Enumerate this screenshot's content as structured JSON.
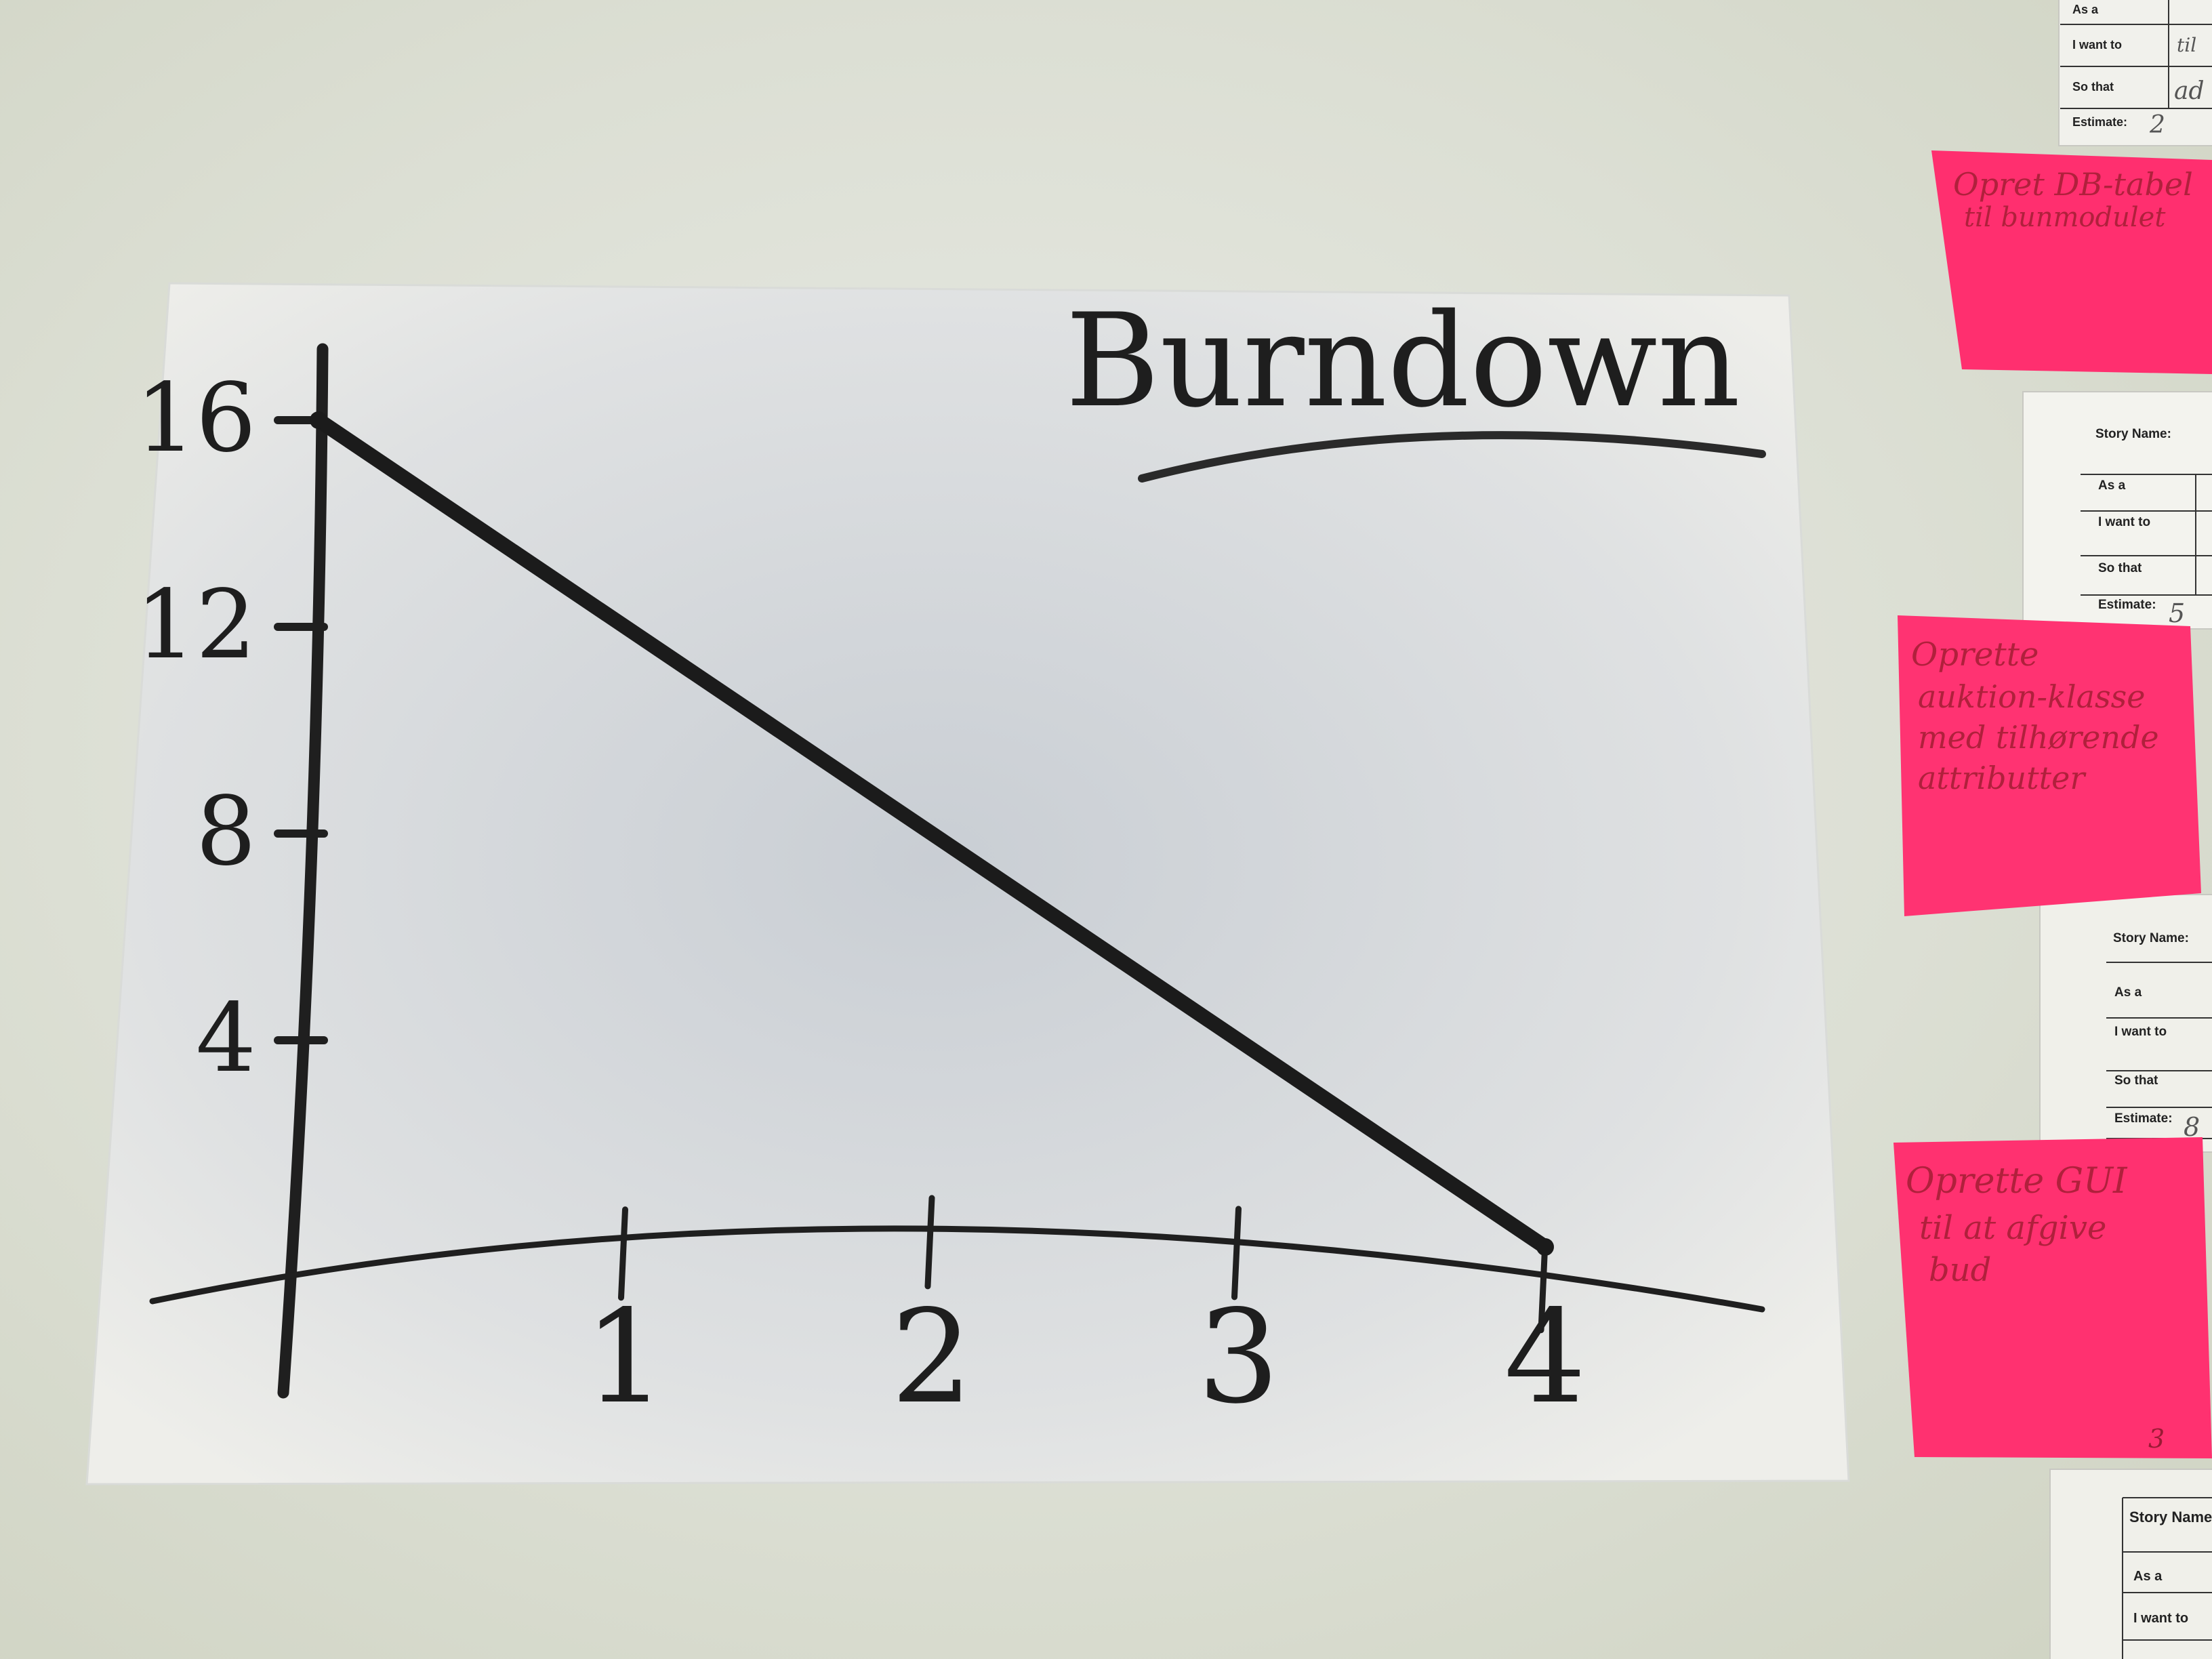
{
  "chart_data": {
    "type": "line",
    "title": "Burndown",
    "x": [
      0,
      4
    ],
    "y": [
      16,
      0
    ],
    "x_ticks": [
      "1",
      "2",
      "3",
      "4"
    ],
    "y_ticks": [
      "4",
      "8",
      "12",
      "16"
    ],
    "xlim": [
      0,
      4
    ],
    "ylim": [
      0,
      16
    ],
    "grid": false,
    "line_color": "#1b1b1b"
  },
  "story_cards": [
    {
      "name_label": "",
      "name_value": "",
      "as_a": "As a",
      "i_want_to": "I want to",
      "i_want_to_value": "til",
      "so_that": "So that",
      "so_that_value": "ad",
      "estimate": "Estimate:",
      "estimate_value": "2"
    },
    {
      "name_label": "Story Name:",
      "name_value": "",
      "as_a": "As a",
      "i_want_to": "I want to",
      "i_want_to_value": "",
      "so_that": "So that",
      "so_that_value": "",
      "estimate": "Estimate:",
      "estimate_value": "5"
    },
    {
      "name_label": "Story Name:",
      "name_value": "",
      "as_a": "As a",
      "i_want_to": "I want to",
      "i_want_to_value": "",
      "so_that": "So that",
      "so_that_value": "",
      "estimate": "Estimate:",
      "estimate_value": "8"
    },
    {
      "name_label": "Story Name",
      "name_value": "",
      "as_a": "As a",
      "i_want_to": "I want to",
      "i_want_to_value": "",
      "so_that": "",
      "so_that_value": "",
      "estimate": "",
      "estimate_value": ""
    }
  ],
  "sticky_notes": [
    {
      "lines": [
        "Opret DB-tabel",
        "til bunmodulet"
      ],
      "page": "",
      "color": "#ff2f6f"
    },
    {
      "lines": [
        "Oprette",
        "auktion-klasse",
        "med tilhørende",
        "attributter"
      ],
      "page": "",
      "color": "#ff3372"
    },
    {
      "lines": [
        "Oprette GUI",
        "til at afgive",
        "bud"
      ],
      "page": "3",
      "color": "#ff3170"
    }
  ]
}
